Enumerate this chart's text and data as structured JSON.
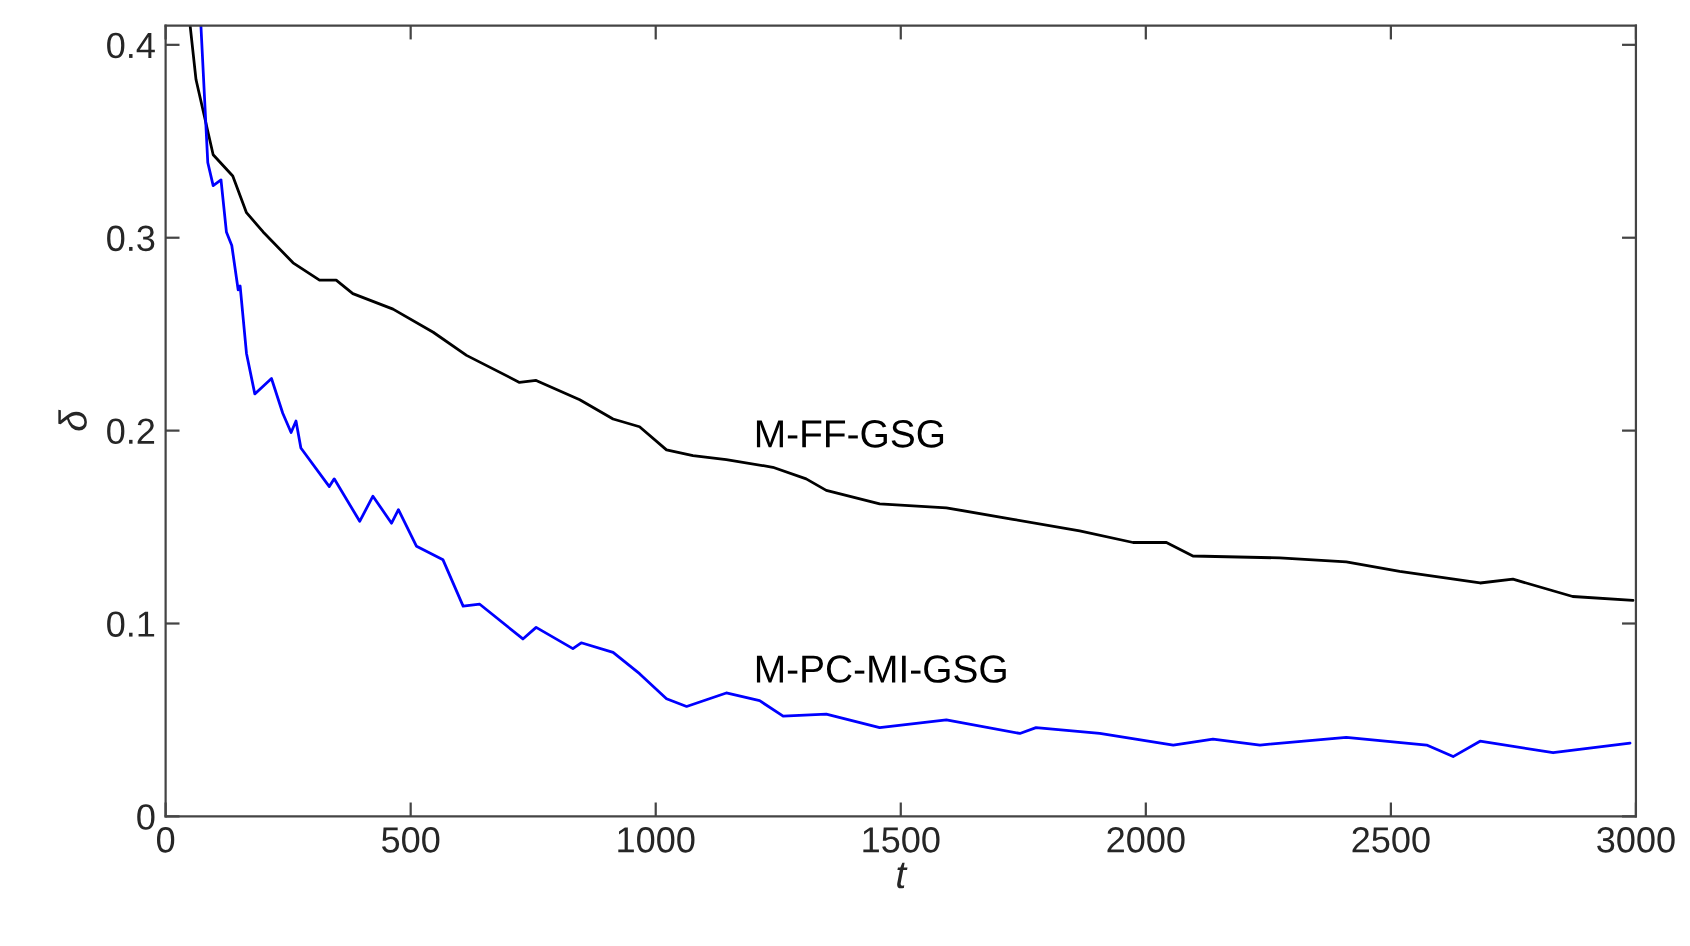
{
  "chart_data": {
    "type": "line",
    "xlabel": "t",
    "ylabel": "δ",
    "xlim": [
      0,
      3000
    ],
    "xticks": [
      0,
      500,
      1000,
      1500,
      2000,
      2500,
      3000
    ],
    "ylim": [
      0,
      0.41
    ],
    "yticks": [
      0,
      0.1,
      0.2,
      0.3,
      0.4
    ],
    "grid": false,
    "legend": false,
    "marker": "none",
    "line_style": "solid",
    "series": [
      {
        "name": "M-FF-GSG",
        "color": "#000000",
        "x": [
          50,
          62,
          97,
          137,
          165,
          199,
          260,
          314,
          348,
          382,
          464,
          546,
          614,
          722,
          756,
          845,
          913,
          967,
          1022,
          1076,
          1144,
          1239,
          1307,
          1348,
          1457,
          1593,
          1729,
          1865,
          1974,
          2042,
          2096,
          2273,
          2409,
          2518,
          2682,
          2749,
          2871,
          2994
        ],
        "values": [
          0.41,
          0.382,
          0.343,
          0.332,
          0.313,
          0.303,
          0.287,
          0.278,
          0.278,
          0.271,
          0.263,
          0.251,
          0.239,
          0.225,
          0.226,
          0.216,
          0.206,
          0.202,
          0.19,
          0.187,
          0.185,
          0.181,
          0.175,
          0.169,
          0.162,
          0.16,
          0.154,
          0.148,
          0.142,
          0.142,
          0.135,
          0.134,
          0.132,
          0.127,
          0.121,
          0.123,
          0.114,
          0.112
        ]
      },
      {
        "name": "M-PC-MI-GSG",
        "color": "#0000ff",
        "x": [
          72,
          86,
          97,
          113,
          124,
          135,
          148,
          152,
          165,
          182,
          199,
          216,
          239,
          256,
          266,
          276,
          334,
          344,
          396,
          423,
          461,
          475,
          512,
          566,
          607,
          641,
          729,
          756,
          831,
          848,
          913,
          967,
          1022,
          1063,
          1144,
          1212,
          1260,
          1348,
          1457,
          1593,
          1743,
          1776,
          1906,
          2056,
          2137,
          2233,
          2409,
          2573,
          2627,
          2682,
          2831,
          2988
        ],
        "values": [
          0.41,
          0.339,
          0.327,
          0.33,
          0.303,
          0.296,
          0.273,
          0.275,
          0.24,
          0.219,
          0.223,
          0.227,
          0.209,
          0.199,
          0.205,
          0.191,
          0.171,
          0.175,
          0.153,
          0.166,
          0.152,
          0.159,
          0.14,
          0.133,
          0.109,
          0.11,
          0.092,
          0.098,
          0.087,
          0.09,
          0.085,
          0.074,
          0.061,
          0.057,
          0.064,
          0.06,
          0.052,
          0.053,
          0.046,
          0.05,
          0.043,
          0.046,
          0.043,
          0.037,
          0.04,
          0.037,
          0.041,
          0.037,
          0.031,
          0.039,
          0.033,
          0.038
        ]
      }
    ]
  }
}
